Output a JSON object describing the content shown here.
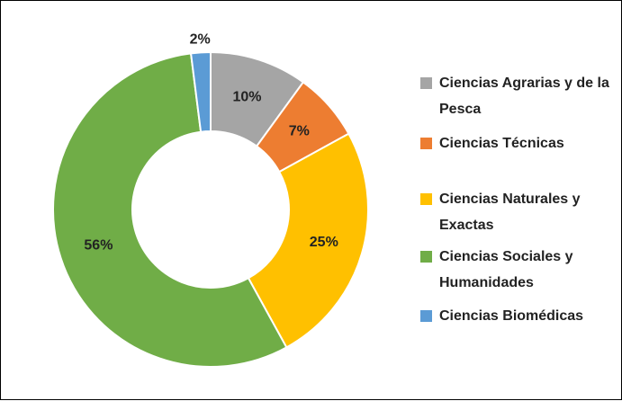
{
  "chart_data": {
    "type": "donut",
    "categories": [
      "Ciencias Agrarias y de la Pesca",
      "Ciencias Técnicas",
      "Ciencias Naturales y Exactas",
      "Ciencias Sociales y Humanidades",
      "Ciencias Biomédicas"
    ],
    "values": [
      10,
      7,
      25,
      56,
      2
    ],
    "value_labels": [
      "10%",
      "7%",
      "25%",
      "56%",
      "2%"
    ],
    "colors": [
      "#a5a5a5",
      "#ed7d31",
      "#ffc000",
      "#70ad47",
      "#5b9bd5"
    ],
    "legend": "right"
  }
}
